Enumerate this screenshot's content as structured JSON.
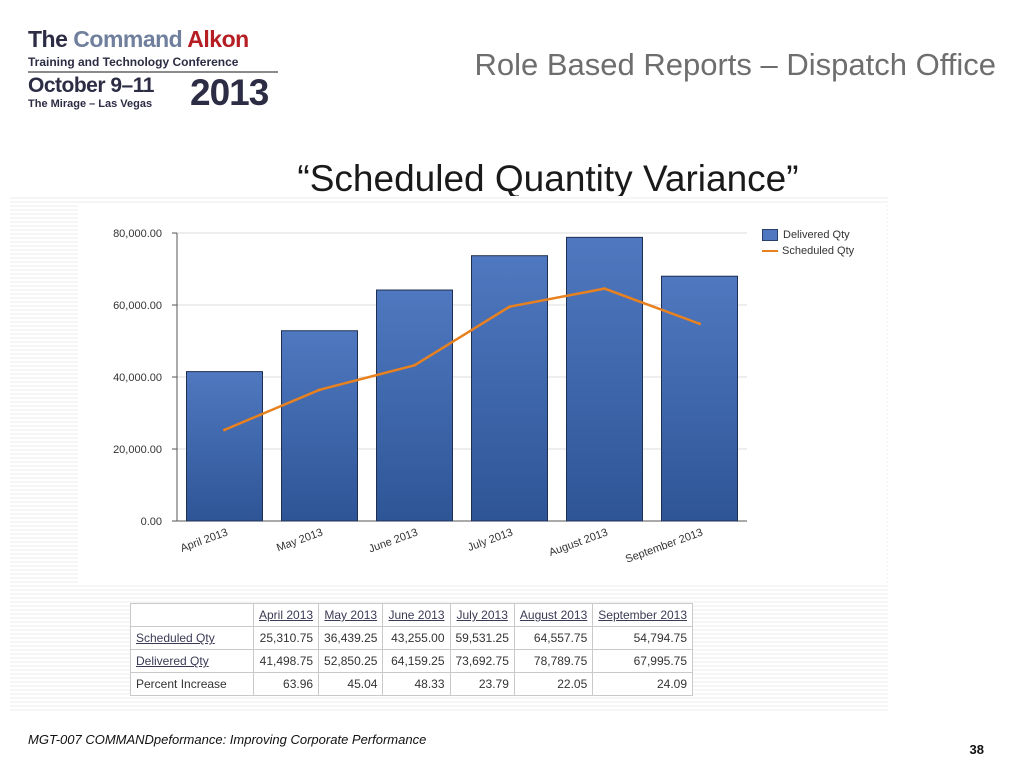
{
  "logo": {
    "line1_a": "The ",
    "line1_b": "Command ",
    "line1_c": "Alkon",
    "line2": "Training and Technology Conference",
    "line3": "October 9–11",
    "line4": "The Mirage – Las Vegas",
    "year": "2013"
  },
  "title": "Role Based Reports – Dispatch Office",
  "subtitle": "“Scheduled Quantity Variance”",
  "colors": {
    "bar": "#4f78c0",
    "bar_dark": "#2e5596",
    "line": "#e8811f",
    "title": "#6e6e6e",
    "logo_red": "#b51f24"
  },
  "chart_data": {
    "type": "bar",
    "categories": [
      "April 2013",
      "May 2013",
      "June 2013",
      "July 2013",
      "August 2013",
      "September 2013"
    ],
    "series": [
      {
        "name": "Delivered Qty",
        "type": "bar",
        "values": [
          41498.75,
          52850.25,
          64159.25,
          73692.75,
          78789.75,
          67995.75
        ]
      },
      {
        "name": "Scheduled Qty",
        "type": "line",
        "values": [
          25310.75,
          36439.25,
          43255.0,
          59531.25,
          64557.75,
          54794.75
        ]
      }
    ],
    "ylim": [
      0,
      80000
    ],
    "yticks": [
      "0.00",
      "20,000.00",
      "40,000.00",
      "60,000.00",
      "80,000.00"
    ],
    "grid": true,
    "legend": "top-right"
  },
  "table": {
    "columns": [
      "April 2013",
      "May 2013",
      "June 2013",
      "July 2013",
      "August 2013",
      "September 2013"
    ],
    "rows": [
      {
        "label": "Scheduled Qty",
        "values": [
          "25,310.75",
          "36,439.25",
          "43,255.00",
          "59,531.25",
          "64,557.75",
          "54,794.75"
        ]
      },
      {
        "label": "Delivered Qty",
        "values": [
          "41,498.75",
          "52,850.25",
          "64,159.25",
          "73,692.75",
          "78,789.75",
          "67,995.75"
        ]
      },
      {
        "label": "Percent Increase",
        "values": [
          "63.96",
          "45.04",
          "48.33",
          "23.79",
          "22.05",
          "24.09"
        ]
      }
    ]
  },
  "footer": "MGT-007 COMMANDpeformance: Improving Corporate Performance",
  "page_number": "38"
}
